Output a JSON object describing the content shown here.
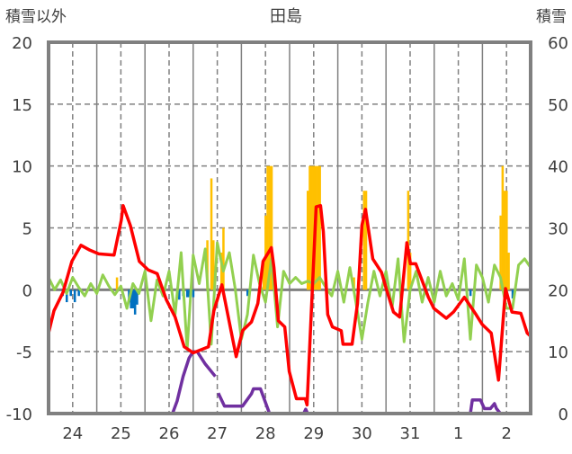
{
  "chart_data": {
    "type": "line",
    "title": "田島",
    "ylabel_left": "積雪以外",
    "ylabel_right": "積雪",
    "ylim_left": [
      -10,
      20
    ],
    "ylim_right": [
      0,
      60
    ],
    "yticks_left": [
      "20",
      "15",
      "10",
      "5",
      "0",
      "-5",
      "-10"
    ],
    "yticks_right": [
      "60",
      "50",
      "40",
      "30",
      "20",
      "10",
      "0"
    ],
    "x_unit": "hours from start of day 24",
    "xlim": [
      0,
      240
    ],
    "xtick_labels": [
      "24",
      "25",
      "26",
      "27",
      "28",
      "29",
      "30",
      "31",
      "1",
      "2"
    ],
    "grid": true,
    "colors": {
      "temperature": "#ff0000",
      "wind": "#92d050",
      "precip": "#ffc000",
      "negative": "#0070c0",
      "snow": "#7030a0",
      "axis": "#808080"
    },
    "series": [
      {
        "name": "temperature",
        "axis": "left",
        "points": [
          [
            0,
            -3.5
          ],
          [
            2.7,
            -1.7
          ],
          [
            7.2,
            -0.2
          ],
          [
            11.6,
            2.3
          ],
          [
            16.1,
            3.6
          ],
          [
            20.6,
            3.2
          ],
          [
            25,
            2.9
          ],
          [
            32.6,
            2.8
          ],
          [
            36.2,
            5.6
          ],
          [
            37.1,
            6.8
          ],
          [
            40.7,
            5.2
          ],
          [
            45.2,
            2.3
          ],
          [
            49.6,
            1.6
          ],
          [
            54.1,
            1.3
          ],
          [
            58.6,
            -0.8
          ],
          [
            63,
            -2.2
          ],
          [
            67.5,
            -4.6
          ],
          [
            72,
            -5.1
          ],
          [
            79.6,
            -4.6
          ],
          [
            82.3,
            -1.7
          ],
          [
            86.3,
            0.4
          ],
          [
            93.4,
            -5.4
          ],
          [
            96.6,
            -3.3
          ],
          [
            101,
            -2.6
          ],
          [
            104.2,
            -1.1
          ],
          [
            106.8,
            2.3
          ],
          [
            110.9,
            3.4
          ],
          [
            112.2,
            1.8
          ],
          [
            114.4,
            -2.5
          ],
          [
            117.6,
            -3
          ],
          [
            119.8,
            -6.6
          ],
          [
            123.4,
            -8.8
          ],
          [
            127.8,
            -8.8
          ],
          [
            128.7,
            -9.3
          ],
          [
            133.2,
            6.7
          ],
          [
            135.4,
            6.8
          ],
          [
            136.8,
            4.7
          ],
          [
            139,
            -2
          ],
          [
            141.3,
            -3
          ],
          [
            145.7,
            -3.3
          ],
          [
            146.6,
            -4.4
          ],
          [
            151.1,
            -4.4
          ],
          [
            153.8,
            -1.1
          ],
          [
            156,
            5.2
          ],
          [
            157.8,
            6.5
          ],
          [
            161.4,
            2.5
          ],
          [
            165.8,
            1.4
          ],
          [
            168.1,
            0.1
          ],
          [
            171.7,
            -1.8
          ],
          [
            174.8,
            -2.2
          ],
          [
            178.4,
            3.8
          ],
          [
            180.2,
            2.1
          ],
          [
            182.8,
            2.1
          ],
          [
            189.1,
            -0.6
          ],
          [
            191.8,
            -1.5
          ],
          [
            198,
            -2.3
          ],
          [
            201.6,
            -1.8
          ],
          [
            207,
            -0.6
          ],
          [
            212.8,
            -2
          ],
          [
            215.9,
            -2.8
          ],
          [
            220.4,
            -3.5
          ],
          [
            224,
            -7.3
          ],
          [
            227.5,
            0.1
          ],
          [
            230.7,
            -1.8
          ],
          [
            235.1,
            -1.9
          ],
          [
            238.3,
            -3.5
          ],
          [
            239.6,
            -3.7
          ]
        ]
      },
      {
        "name": "wind",
        "axis": "left",
        "step_hours": 3,
        "values": [
          1,
          0,
          0.8,
          -0.3,
          1,
          0.2,
          -0.5,
          0.5,
          -0.3,
          1.2,
          0.3,
          -0.4,
          0.3,
          -1.5,
          0.5,
          -0.3,
          1.5,
          -2.5,
          0.8,
          -0.5,
          1.5,
          -2,
          3,
          -4.8,
          2.8,
          0.5,
          3.3,
          -4.4,
          3.8,
          1.5,
          3,
          0,
          -4,
          -2,
          2.8,
          0.5,
          -1,
          2.5,
          -3,
          1.5,
          0.5,
          1,
          0.5,
          0.7,
          0.5,
          1,
          0.2,
          -0.5,
          1.5,
          -1,
          1.8,
          -1,
          -4,
          -1,
          1.5,
          -0.5,
          1.5,
          -1.5,
          2.5,
          -4.2,
          0,
          1.5,
          -1,
          1,
          -1,
          1.5,
          -0.5,
          0.5,
          -0.8,
          2.5,
          -4,
          2,
          1,
          -1,
          2,
          1,
          -1.5,
          -1.5,
          2,
          2.5,
          1.8
        ]
      },
      {
        "name": "precip",
        "axis": "left",
        "kind": "bar",
        "points": [
          [
            34,
            1
          ],
          [
            79,
            4
          ],
          [
            81,
            9
          ],
          [
            82,
            4
          ],
          [
            86,
            3
          ],
          [
            87,
            5
          ],
          [
            107,
            2.5
          ],
          [
            108,
            6
          ],
          [
            109,
            10
          ],
          [
            110,
            10
          ],
          [
            111,
            10
          ],
          [
            129,
            8
          ],
          [
            130,
            10
          ],
          [
            131,
            10
          ],
          [
            132,
            10
          ],
          [
            133,
            10
          ],
          [
            134,
            10
          ],
          [
            135,
            10
          ],
          [
            152,
            1
          ],
          [
            157,
            8
          ],
          [
            158,
            8
          ],
          [
            179,
            8
          ],
          [
            180,
            3
          ],
          [
            225,
            6
          ],
          [
            226,
            10
          ],
          [
            227,
            8
          ],
          [
            228,
            8
          ],
          [
            229,
            3
          ]
        ]
      },
      {
        "name": "negative",
        "axis": "left",
        "kind": "bar",
        "points": [
          [
            7,
            -0.5
          ],
          [
            9,
            -1
          ],
          [
            11,
            -0.5
          ],
          [
            13,
            -1
          ],
          [
            15,
            -0.5
          ],
          [
            40,
            -1
          ],
          [
            41,
            -1.5
          ],
          [
            42,
            -1.5
          ],
          [
            43,
            -2
          ],
          [
            44,
            -1.2
          ],
          [
            65,
            -0.8
          ],
          [
            67,
            -0.5
          ],
          [
            69,
            -0.6
          ],
          [
            70,
            -0.6
          ],
          [
            72,
            -0.6
          ],
          [
            99,
            -0.5
          ],
          [
            210,
            -0.5
          ],
          [
            231,
            -0.7
          ]
        ]
      },
      {
        "name": "snow",
        "axis": "right",
        "points": [
          [
            0,
            0
          ],
          [
            61.7,
            0
          ],
          [
            64,
            2
          ],
          [
            67,
            6
          ],
          [
            70,
            9
          ],
          [
            72,
            10
          ],
          [
            74,
            10
          ],
          [
            78,
            8
          ],
          [
            83,
            6
          ],
          null,
          [
            84.5,
            3.3
          ],
          [
            87.6,
            1.2
          ],
          [
            96.6,
            1.2
          ],
          [
            101,
            3.2
          ],
          [
            102,
            4
          ],
          [
            105.5,
            4
          ],
          [
            110,
            0
          ],
          [
            127,
            0
          ],
          [
            128,
            0.7
          ],
          [
            129,
            0
          ],
          [
            210,
            0
          ],
          [
            211,
            2.2
          ],
          [
            215,
            2.2
          ],
          [
            217,
            0.8
          ],
          [
            220,
            0.8
          ],
          [
            222,
            1.6
          ],
          [
            223,
            0.8
          ],
          [
            225,
            0
          ],
          [
            240,
            0
          ]
        ]
      }
    ]
  }
}
